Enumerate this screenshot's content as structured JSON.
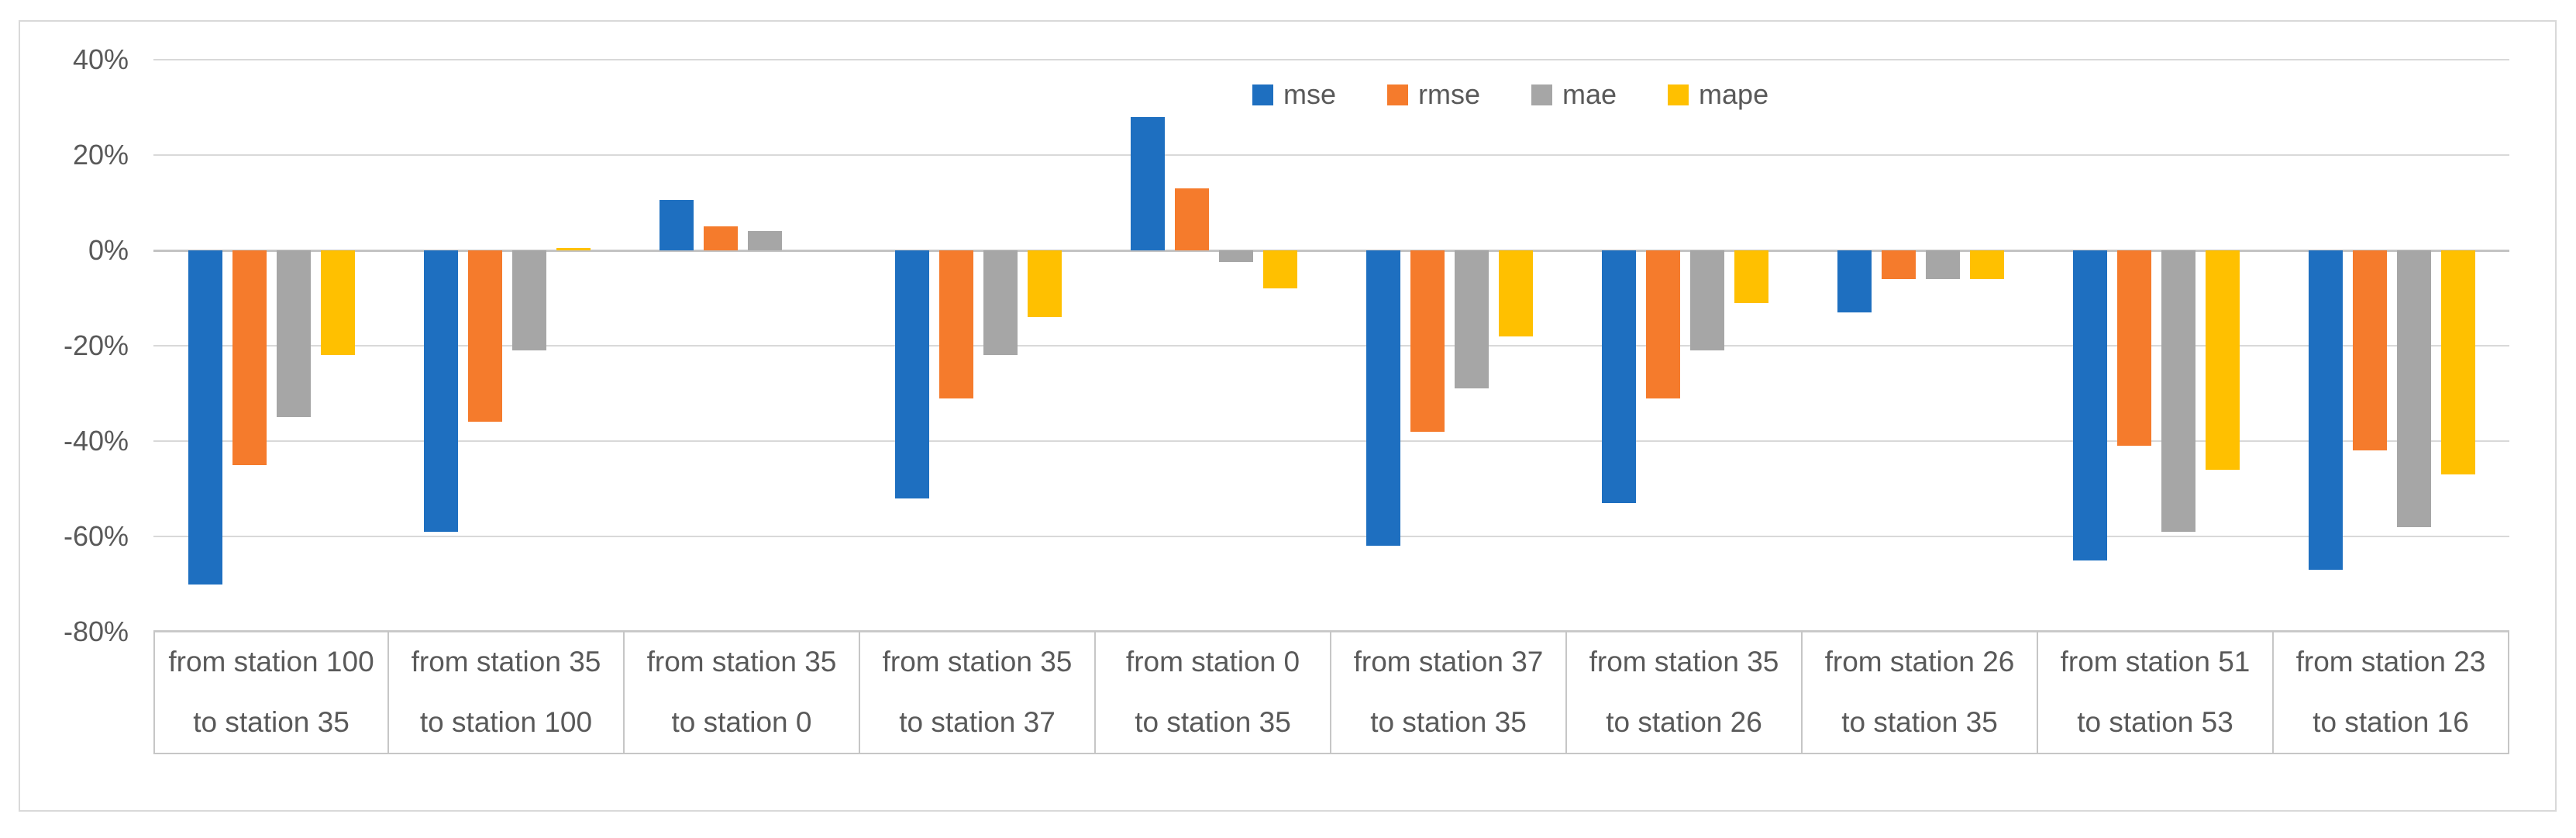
{
  "chart_data": {
    "type": "bar",
    "title": "",
    "xlabel": "",
    "ylabel": "",
    "categories": [
      {
        "line1": "from station 100",
        "line2": "to station 35"
      },
      {
        "line1": "from station 35",
        "line2": "to station 100"
      },
      {
        "line1": "from station 35",
        "line2": "to station 0"
      },
      {
        "line1": "from station 35",
        "line2": "to station 37"
      },
      {
        "line1": "from station 0",
        "line2": "to station 35"
      },
      {
        "line1": "from station 37",
        "line2": "to station 35"
      },
      {
        "line1": "from station 35",
        "line2": "to station 26"
      },
      {
        "line1": "from station 26",
        "line2": "to station 35"
      },
      {
        "line1": "from station 51",
        "line2": "to station 53"
      },
      {
        "line1": "from station 23",
        "line2": "to station 16"
      }
    ],
    "series": [
      {
        "name": "mse",
        "color": "#1E6FC0",
        "values": [
          -70,
          -59,
          10.5,
          -52,
          28,
          -62,
          -53,
          -13,
          -65,
          -67
        ]
      },
      {
        "name": "rmse",
        "color": "#F57B2C",
        "values": [
          -45,
          -36,
          5,
          -31,
          13,
          -38,
          -31,
          -6,
          -41,
          -42
        ]
      },
      {
        "name": "mae",
        "color": "#A6A6A6",
        "values": [
          -35,
          -21,
          4,
          -22,
          -2.5,
          -29,
          -21,
          -6,
          -59,
          -58
        ]
      },
      {
        "name": "mape",
        "color": "#FFC000",
        "values": [
          -22,
          0.5,
          0,
          -14,
          -8,
          -18,
          -11,
          -6,
          -46,
          -47
        ]
      }
    ],
    "y_axis": {
      "min": -80,
      "max": 40,
      "step": 20,
      "tick_labels": [
        "40%",
        "20%",
        "0%",
        "-20%",
        "-40%",
        "-60%",
        "-80%"
      ],
      "format": "percent"
    },
    "legend": {
      "entries": [
        "mse",
        "rmse",
        "mae",
        "mape"
      ],
      "position": "top-center"
    },
    "grid": true
  },
  "colors": {
    "gridline": "#d9d9d9",
    "zero_line": "#c3c3c3",
    "axis_text": "#595959",
    "band_border": "#c6c6c6",
    "figure_border": "#d9d9d9",
    "background": "#ffffff"
  }
}
